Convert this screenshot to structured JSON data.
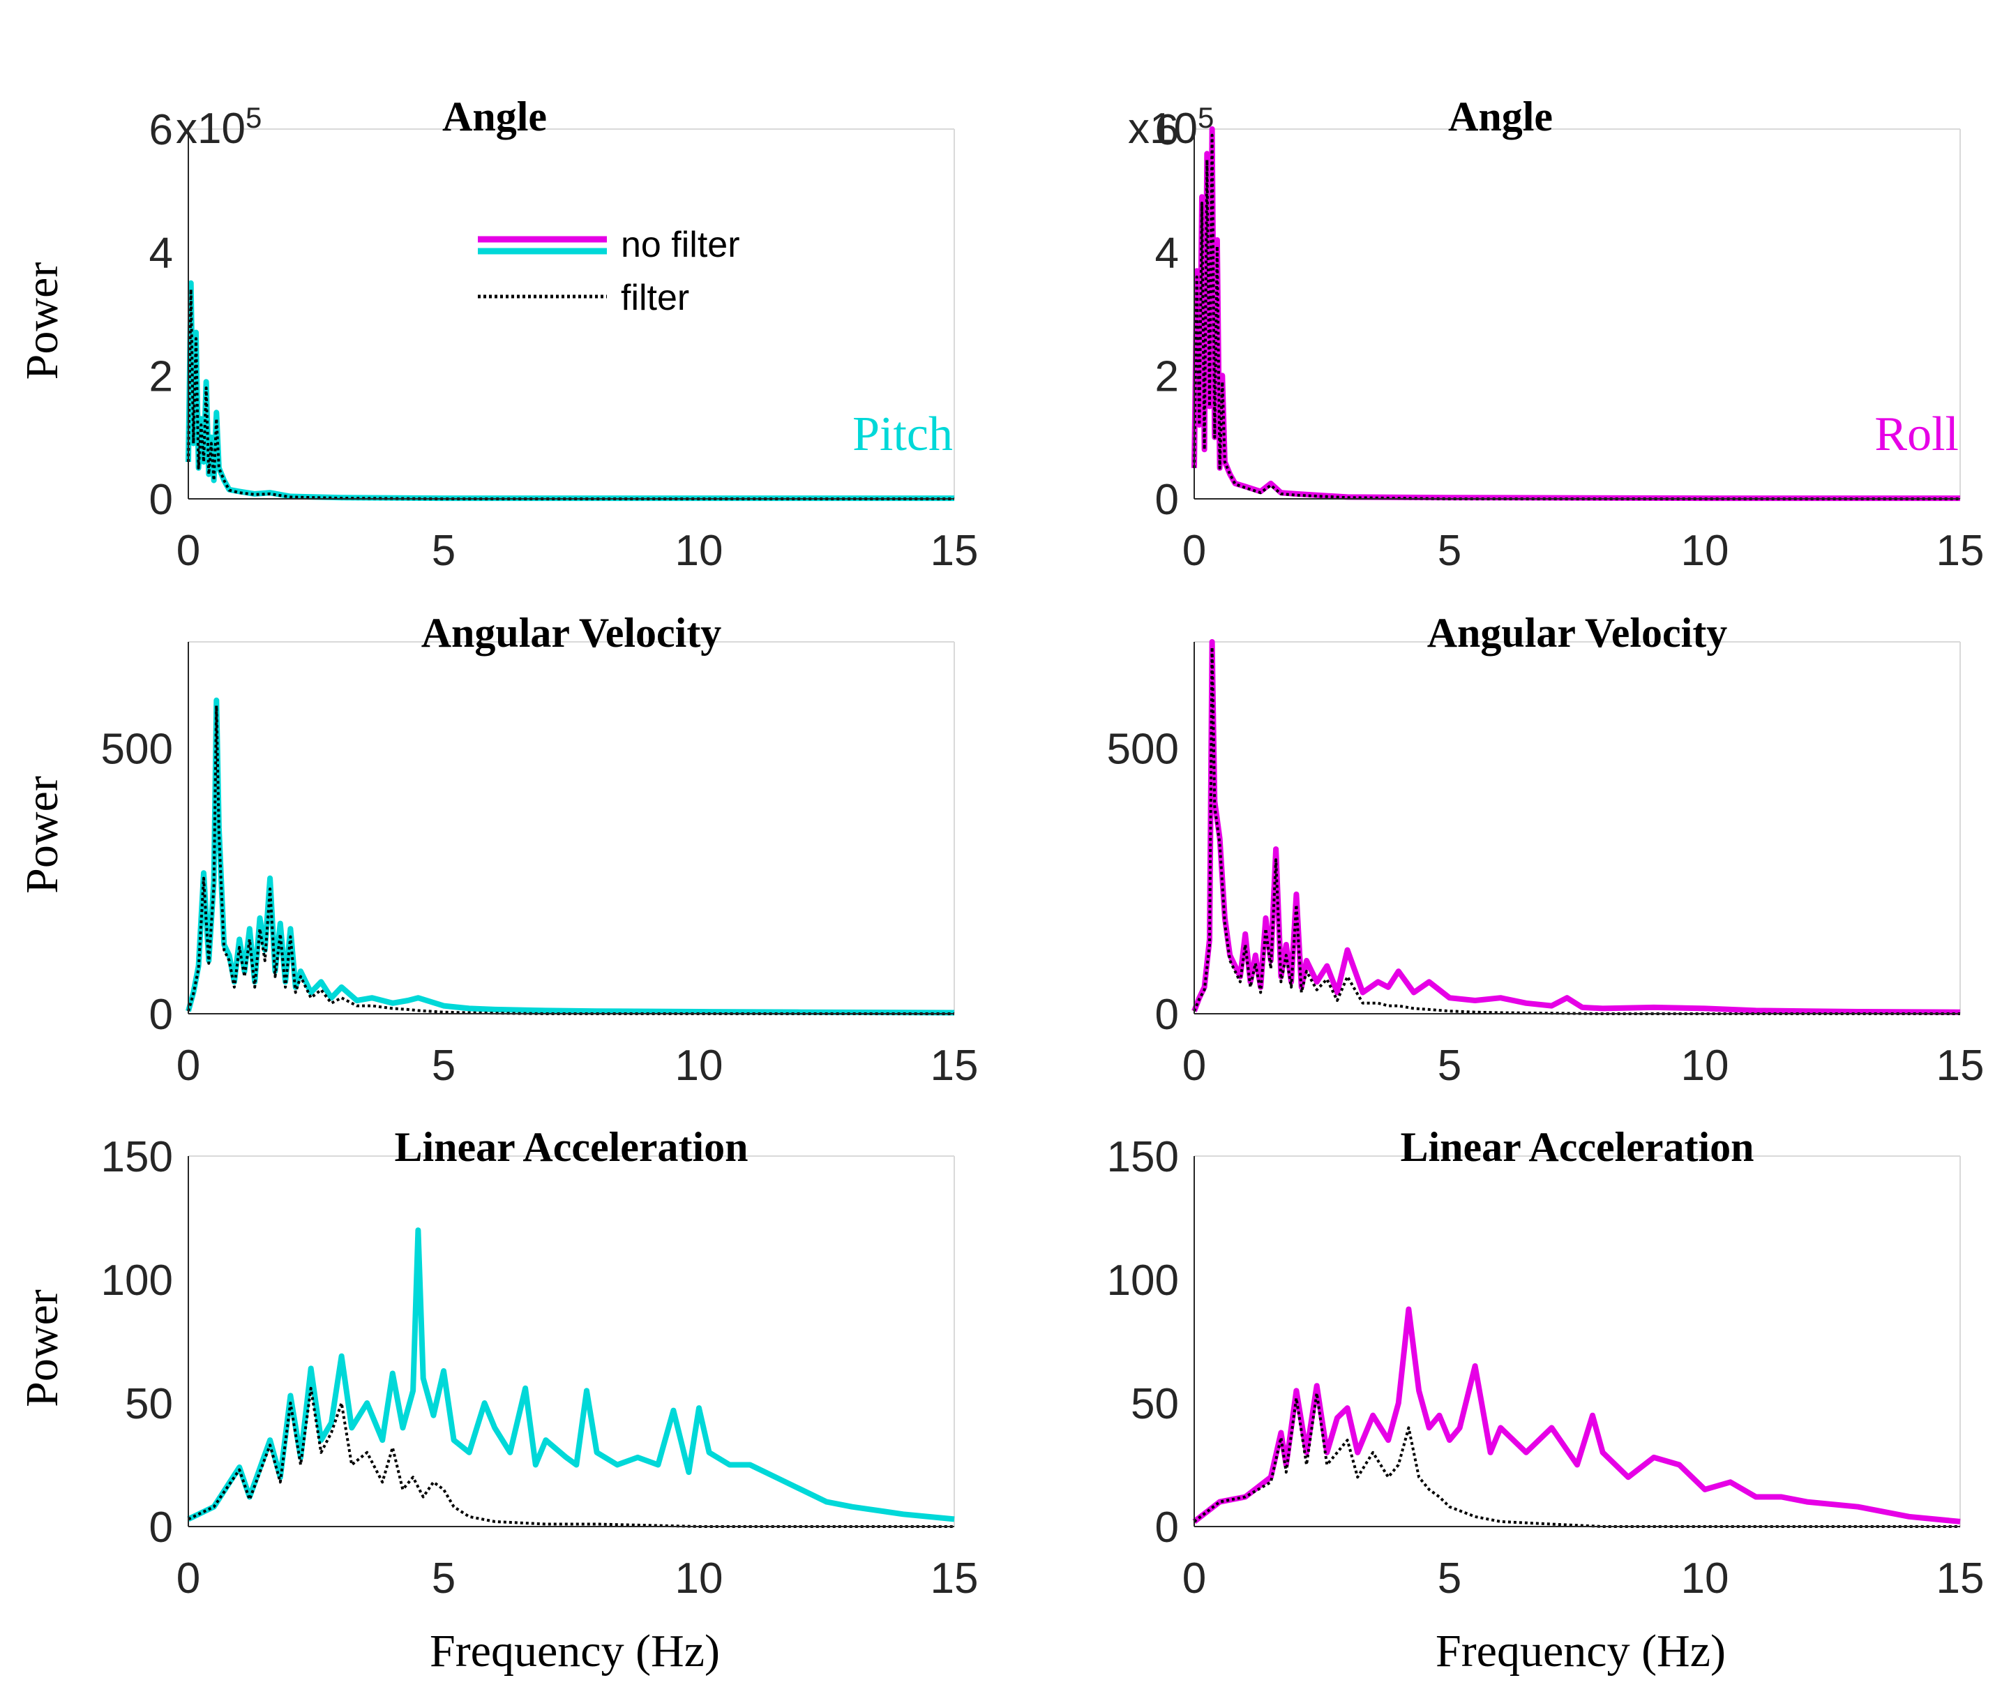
{
  "colors": {
    "pitch": "#00d8d8",
    "roll": "#e600e6",
    "filter": "#000000"
  },
  "legend": {
    "no_filter": "no filter",
    "filter": "filter"
  },
  "common": {
    "ylabel": "Power",
    "xlabel": "Frequency (Hz)",
    "sci_base": "x10",
    "sci_exp": "5"
  },
  "chart_data": [
    {
      "type": "line",
      "column": "Pitch",
      "row": 0,
      "title": "Angle",
      "corner_label": "Pitch",
      "ylabel": "Power",
      "xlabel": "",
      "xlim": [
        0,
        15
      ],
      "ylim": [
        0,
        6
      ],
      "xticks": [
        "0",
        "5",
        "10",
        "15"
      ],
      "yticks": [
        [
          "0",
          0
        ],
        [
          "2",
          2
        ],
        [
          "4",
          4
        ],
        [
          "6",
          6
        ]
      ],
      "sci_note": "x10^5",
      "series": [
        {
          "name": "no filter",
          "x": [
            0,
            0.05,
            0.1,
            0.15,
            0.2,
            0.25,
            0.3,
            0.35,
            0.4,
            0.45,
            0.5,
            0.55,
            0.6,
            0.7,
            0.8,
            1.0,
            1.3,
            1.6,
            2.0,
            3.0,
            5.0,
            10.0,
            15.0
          ],
          "y": [
            0.6,
            3.5,
            0.9,
            2.7,
            0.5,
            1.3,
            0.6,
            1.9,
            0.4,
            1.0,
            0.3,
            1.4,
            0.5,
            0.3,
            0.15,
            0.12,
            0.08,
            0.1,
            0.04,
            0.02,
            0.01,
            0.01,
            0.01
          ]
        },
        {
          "name": "filter",
          "x": [
            0,
            0.05,
            0.1,
            0.15,
            0.2,
            0.25,
            0.3,
            0.35,
            0.4,
            0.45,
            0.5,
            0.55,
            0.6,
            0.7,
            0.8,
            1.0,
            1.3,
            1.6,
            2.0,
            3.0,
            5.0,
            10.0,
            15.0
          ],
          "y": [
            0.6,
            3.4,
            0.9,
            2.6,
            0.5,
            1.2,
            0.6,
            1.8,
            0.4,
            0.9,
            0.3,
            1.3,
            0.5,
            0.3,
            0.14,
            0.1,
            0.07,
            0.08,
            0.03,
            0.01,
            0.0,
            0.0,
            0.0
          ]
        }
      ]
    },
    {
      "type": "line",
      "column": "Roll",
      "row": 0,
      "title": "Angle",
      "corner_label": "Roll",
      "ylabel": "",
      "xlabel": "",
      "xlim": [
        0,
        15
      ],
      "ylim": [
        0,
        6
      ],
      "xticks": [
        "0",
        "5",
        "10",
        "15"
      ],
      "yticks": [
        [
          "0",
          0
        ],
        [
          "2",
          2
        ],
        [
          "4",
          4
        ],
        [
          "6",
          6
        ]
      ],
      "sci_note": "x10^5",
      "series": [
        {
          "name": "no filter",
          "x": [
            0,
            0.05,
            0.1,
            0.15,
            0.2,
            0.25,
            0.3,
            0.35,
            0.4,
            0.45,
            0.5,
            0.55,
            0.6,
            0.7,
            0.8,
            1.0,
            1.3,
            1.5,
            1.7,
            2.0,
            3.0,
            5.0,
            10.0,
            15.0
          ],
          "y": [
            0.5,
            3.7,
            1.2,
            4.9,
            0.8,
            5.6,
            1.5,
            6.0,
            1.0,
            4.2,
            0.5,
            2.0,
            0.6,
            0.4,
            0.25,
            0.2,
            0.12,
            0.25,
            0.1,
            0.08,
            0.03,
            0.02,
            0.01,
            0.01
          ]
        },
        {
          "name": "filter",
          "x": [
            0,
            0.05,
            0.1,
            0.15,
            0.2,
            0.25,
            0.3,
            0.35,
            0.4,
            0.45,
            0.5,
            0.55,
            0.6,
            0.7,
            0.8,
            1.0,
            1.3,
            1.5,
            1.7,
            2.0,
            3.0,
            5.0,
            10.0,
            15.0
          ],
          "y": [
            0.5,
            3.6,
            1.2,
            4.8,
            0.8,
            5.5,
            1.5,
            5.9,
            1.0,
            4.1,
            0.5,
            1.9,
            0.6,
            0.4,
            0.24,
            0.18,
            0.1,
            0.22,
            0.08,
            0.06,
            0.02,
            0.0,
            0.0,
            0.0
          ]
        }
      ]
    },
    {
      "type": "line",
      "column": "Pitch",
      "row": 1,
      "title": "Angular Velocity",
      "ylabel": "Power",
      "xlabel": "",
      "xlim": [
        0,
        15
      ],
      "ylim": [
        0,
        700
      ],
      "xticks": [
        "0",
        "5",
        "10",
        "15"
      ],
      "yticks": [
        [
          "0",
          0
        ],
        [
          "500",
          500
        ]
      ],
      "series": [
        {
          "name": "no filter",
          "x": [
            0,
            0.1,
            0.2,
            0.3,
            0.4,
            0.5,
            0.55,
            0.6,
            0.7,
            0.8,
            0.9,
            1.0,
            1.1,
            1.2,
            1.3,
            1.4,
            1.5,
            1.6,
            1.7,
            1.8,
            1.9,
            2.0,
            2.1,
            2.2,
            2.4,
            2.6,
            2.8,
            3.0,
            3.3,
            3.6,
            4.0,
            4.3,
            4.5,
            5.0,
            5.5,
            6.0,
            7.0,
            8.0,
            10.0,
            12.0,
            15.0
          ],
          "y": [
            5,
            40,
            90,
            265,
            100,
            250,
            590,
            350,
            130,
            110,
            60,
            140,
            80,
            160,
            60,
            180,
            120,
            255,
            80,
            170,
            60,
            160,
            50,
            80,
            40,
            60,
            30,
            50,
            25,
            30,
            20,
            25,
            30,
            15,
            10,
            8,
            6,
            5,
            4,
            3,
            2
          ]
        },
        {
          "name": "filter",
          "x": [
            0,
            0.1,
            0.2,
            0.3,
            0.4,
            0.5,
            0.55,
            0.6,
            0.7,
            0.8,
            0.9,
            1.0,
            1.1,
            1.2,
            1.3,
            1.4,
            1.5,
            1.6,
            1.7,
            1.8,
            1.9,
            2.0,
            2.1,
            2.2,
            2.4,
            2.6,
            2.8,
            3.0,
            3.3,
            3.6,
            4.0,
            4.3,
            4.5,
            5.0,
            5.5,
            6.0,
            7.0,
            8.0,
            10.0,
            12.0,
            15.0
          ],
          "y": [
            5,
            38,
            85,
            255,
            95,
            240,
            580,
            340,
            120,
            100,
            50,
            125,
            70,
            140,
            50,
            160,
            100,
            235,
            70,
            150,
            50,
            145,
            40,
            70,
            30,
            45,
            20,
            30,
            15,
            15,
            10,
            8,
            6,
            3,
            2,
            1,
            0,
            0,
            0,
            0,
            0
          ]
        }
      ]
    },
    {
      "type": "line",
      "column": "Roll",
      "row": 1,
      "title": "Angular Velocity",
      "ylabel": "",
      "xlabel": "",
      "xlim": [
        0,
        15
      ],
      "ylim": [
        0,
        700
      ],
      "xticks": [
        "0",
        "5",
        "10",
        "15"
      ],
      "yticks": [
        [
          "0",
          0
        ],
        [
          "500",
          500
        ]
      ],
      "series": [
        {
          "name": "no filter",
          "x": [
            0,
            0.1,
            0.2,
            0.3,
            0.35,
            0.4,
            0.5,
            0.6,
            0.7,
            0.8,
            0.9,
            1.0,
            1.1,
            1.2,
            1.3,
            1.4,
            1.5,
            1.6,
            1.7,
            1.8,
            1.9,
            2.0,
            2.1,
            2.2,
            2.4,
            2.6,
            2.8,
            3.0,
            3.3,
            3.6,
            3.8,
            4.0,
            4.3,
            4.6,
            5.0,
            5.5,
            6.0,
            6.5,
            7.0,
            7.3,
            7.6,
            8.0,
            9.0,
            10.0,
            11.0,
            12.0,
            13.0,
            15.0
          ],
          "y": [
            5,
            30,
            50,
            140,
            700,
            400,
            330,
            180,
            110,
            90,
            70,
            150,
            60,
            110,
            50,
            180,
            100,
            310,
            70,
            130,
            60,
            225,
            50,
            100,
            60,
            90,
            40,
            120,
            40,
            60,
            50,
            80,
            40,
            60,
            30,
            25,
            30,
            20,
            15,
            30,
            12,
            10,
            12,
            10,
            6,
            5,
            4,
            3
          ]
        },
        {
          "name": "filter",
          "x": [
            0,
            0.1,
            0.2,
            0.3,
            0.35,
            0.4,
            0.5,
            0.6,
            0.7,
            0.8,
            0.9,
            1.0,
            1.1,
            1.2,
            1.3,
            1.4,
            1.5,
            1.6,
            1.7,
            1.8,
            1.9,
            2.0,
            2.1,
            2.2,
            2.4,
            2.6,
            2.8,
            3.0,
            3.3,
            3.6,
            3.8,
            4.0,
            4.3,
            4.6,
            5.0,
            5.5,
            6.0,
            7.0,
            8.0,
            10.0,
            12.0,
            15.0
          ],
          "y": [
            5,
            28,
            45,
            130,
            690,
            390,
            320,
            170,
            100,
            80,
            60,
            130,
            50,
            95,
            40,
            160,
            85,
            290,
            60,
            110,
            50,
            205,
            40,
            80,
            45,
            65,
            25,
            70,
            20,
            20,
            15,
            15,
            10,
            8,
            5,
            3,
            2,
            1,
            0,
            0,
            0,
            0
          ]
        }
      ]
    },
    {
      "type": "line",
      "column": "Pitch",
      "row": 2,
      "title": "Linear Acceleration",
      "ylabel": "Power",
      "xlabel": "Frequency (Hz)",
      "xlim": [
        0,
        15
      ],
      "ylim": [
        0,
        150
      ],
      "xticks": [
        "0",
        "5",
        "10",
        "15"
      ],
      "yticks": [
        [
          "0",
          0
        ],
        [
          "50",
          50
        ],
        [
          "100",
          100
        ],
        [
          "150",
          150
        ]
      ],
      "series": [
        {
          "name": "no filter",
          "x": [
            0,
            0.5,
            1.0,
            1.2,
            1.6,
            1.8,
            2.0,
            2.2,
            2.4,
            2.6,
            2.8,
            3.0,
            3.2,
            3.5,
            3.8,
            4.0,
            4.2,
            4.4,
            4.5,
            4.6,
            4.8,
            5.0,
            5.2,
            5.5,
            5.8,
            6.0,
            6.3,
            6.6,
            6.8,
            7.0,
            7.4,
            7.6,
            7.8,
            8.0,
            8.4,
            8.8,
            9.2,
            9.5,
            9.8,
            10.0,
            10.2,
            10.6,
            11.0,
            11.5,
            12.0,
            12.5,
            13.0,
            14.0,
            15.0
          ],
          "y": [
            3,
            8,
            24,
            12,
            35,
            20,
            53,
            28,
            64,
            35,
            42,
            69,
            40,
            50,
            35,
            62,
            40,
            55,
            120,
            60,
            45,
            63,
            35,
            30,
            50,
            40,
            30,
            56,
            25,
            35,
            28,
            25,
            55,
            30,
            25,
            28,
            25,
            47,
            22,
            48,
            30,
            25,
            25,
            20,
            15,
            10,
            8,
            5,
            3
          ]
        },
        {
          "name": "filter",
          "x": [
            0,
            0.5,
            1.0,
            1.2,
            1.6,
            1.8,
            2.0,
            2.2,
            2.4,
            2.6,
            2.8,
            3.0,
            3.2,
            3.5,
            3.8,
            4.0,
            4.2,
            4.4,
            4.6,
            4.8,
            5.0,
            5.2,
            5.5,
            6.0,
            7.0,
            8.0,
            10.0,
            12.0,
            15.0
          ],
          "y": [
            3,
            8,
            23,
            11,
            33,
            18,
            50,
            25,
            56,
            30,
            38,
            50,
            25,
            30,
            18,
            32,
            15,
            20,
            12,
            18,
            15,
            8,
            4,
            2,
            1,
            1,
            0,
            0,
            0
          ]
        }
      ]
    },
    {
      "type": "line",
      "column": "Roll",
      "row": 2,
      "title": "Linear Acceleration",
      "ylabel": "",
      "xlabel": "Frequency (Hz)",
      "xlim": [
        0,
        15
      ],
      "ylim": [
        0,
        150
      ],
      "xticks": [
        "0",
        "5",
        "10",
        "15"
      ],
      "yticks": [
        [
          "0",
          0
        ],
        [
          "50",
          50
        ],
        [
          "100",
          100
        ],
        [
          "150",
          150
        ]
      ],
      "series": [
        {
          "name": "no filter",
          "x": [
            0,
            0.5,
            1.0,
            1.5,
            1.7,
            1.8,
            2.0,
            2.2,
            2.4,
            2.6,
            2.8,
            3.0,
            3.2,
            3.5,
            3.8,
            4.0,
            4.2,
            4.4,
            4.6,
            4.8,
            5.0,
            5.2,
            5.5,
            5.8,
            6.0,
            6.5,
            7.0,
            7.5,
            7.8,
            8.0,
            8.5,
            9.0,
            9.5,
            10.0,
            10.5,
            11.0,
            11.5,
            12.0,
            13.0,
            14.0,
            15.0
          ],
          "y": [
            2,
            10,
            12,
            20,
            38,
            25,
            55,
            30,
            57,
            30,
            44,
            48,
            30,
            45,
            35,
            50,
            88,
            55,
            40,
            45,
            35,
            40,
            65,
            30,
            40,
            30,
            40,
            25,
            45,
            30,
            20,
            28,
            25,
            15,
            18,
            12,
            12,
            10,
            8,
            4,
            2
          ]
        },
        {
          "name": "filter",
          "x": [
            0,
            0.5,
            1.0,
            1.5,
            1.7,
            1.8,
            2.0,
            2.2,
            2.4,
            2.6,
            2.8,
            3.0,
            3.2,
            3.5,
            3.8,
            4.0,
            4.2,
            4.4,
            4.6,
            4.8,
            5.0,
            5.5,
            6.0,
            7.0,
            8.0,
            10.0,
            12.0,
            15.0
          ],
          "y": [
            2,
            10,
            12,
            18,
            36,
            22,
            52,
            25,
            54,
            25,
            30,
            35,
            20,
            30,
            20,
            25,
            40,
            20,
            15,
            12,
            8,
            4,
            2,
            1,
            0,
            0,
            0,
            0
          ]
        }
      ]
    }
  ]
}
